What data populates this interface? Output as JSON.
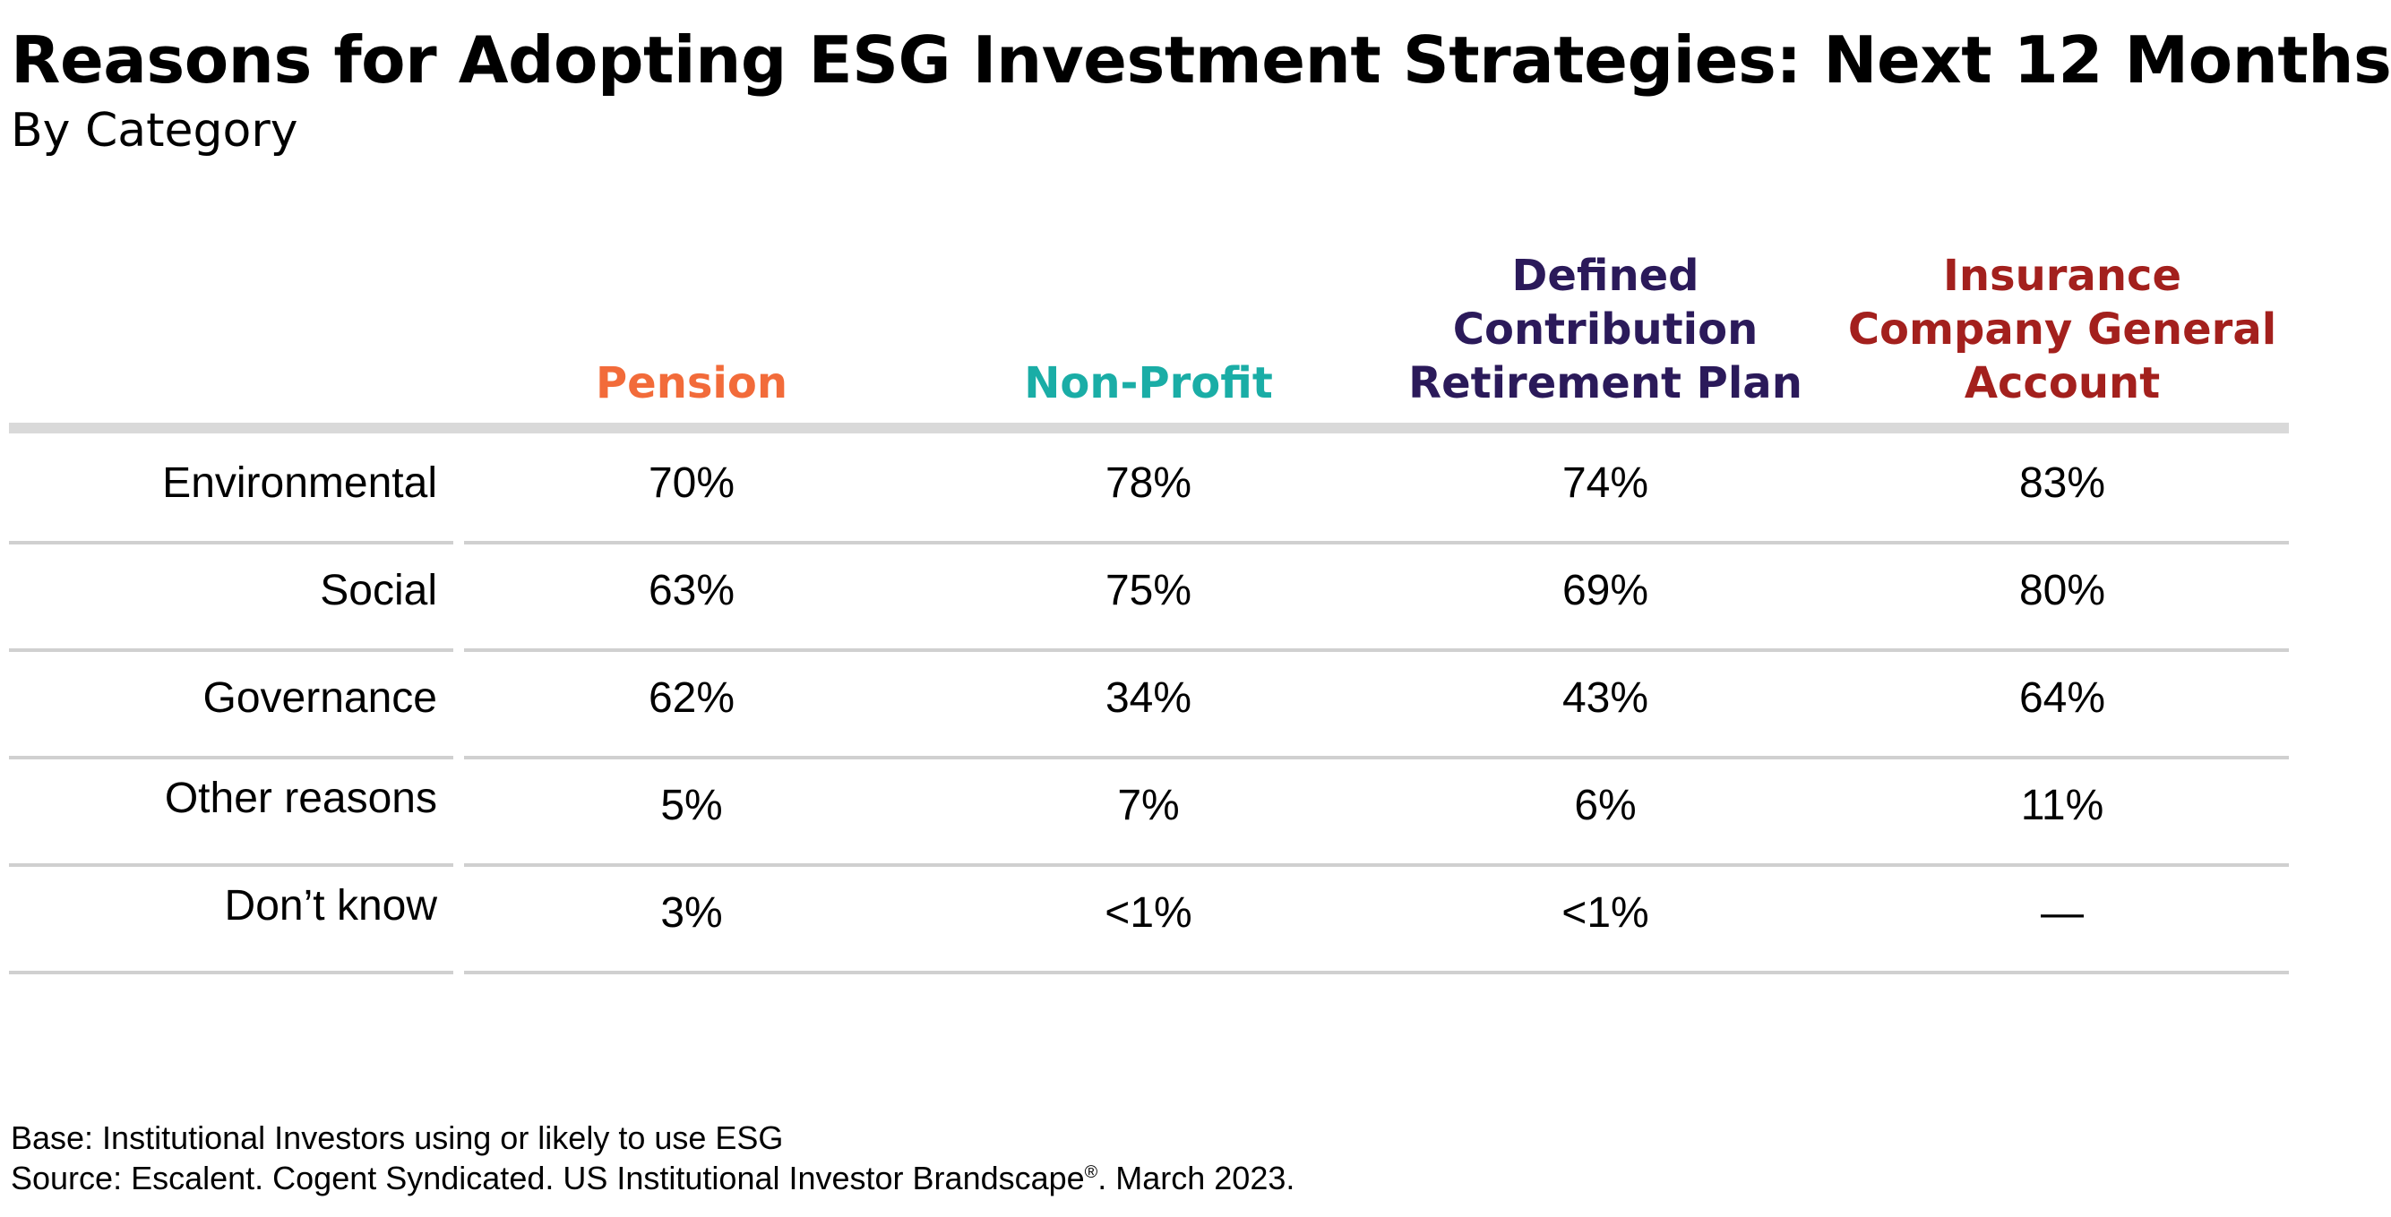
{
  "title": "Reasons for Adopting ESG Investment Strategies: Next 12 Months",
  "subtitle": "By Category",
  "colors": {
    "pension": "#f26b3a",
    "non_profit": "#1aada6",
    "defined_contribution": "#2b1a5a",
    "insurance": "#a3201d",
    "divider": "#d0d0d0",
    "header_bar": "#d9d9d9"
  },
  "chart_data": {
    "type": "table",
    "columns": [
      {
        "name": "Pension",
        "lines": [
          "Pension"
        ]
      },
      {
        "name": "Non-Profit",
        "lines": [
          "Non-Profit"
        ]
      },
      {
        "name": "Defined Contribution Retirement Plan",
        "lines": [
          "Defined",
          "Contribution",
          "Retirement Plan"
        ]
      },
      {
        "name": "Insurance Company General Account",
        "lines": [
          "Insurance",
          "Company General",
          "Account"
        ]
      }
    ],
    "rows": [
      {
        "label": "Environmental",
        "values": [
          "70%",
          "78%",
          "74%",
          "83%"
        ]
      },
      {
        "label": "Social",
        "values": [
          "63%",
          "75%",
          "69%",
          "80%"
        ]
      },
      {
        "label": "Governance",
        "values": [
          "62%",
          "34%",
          "43%",
          "64%"
        ]
      },
      {
        "label": "Other reasons",
        "values": [
          "5%",
          "7%",
          "6%",
          "11%"
        ]
      },
      {
        "label": "Don’t know",
        "values": [
          "3%",
          "<1%",
          "<1%",
          "—"
        ]
      }
    ]
  },
  "footnotes": {
    "base": "Base: Institutional Investors using or likely to use ESG",
    "source_prefix": "Source: Escalent. Cogent Syndicated. US Institutional Investor Brandscape",
    "source_mark": "®",
    "source_suffix": ". March 2023."
  }
}
